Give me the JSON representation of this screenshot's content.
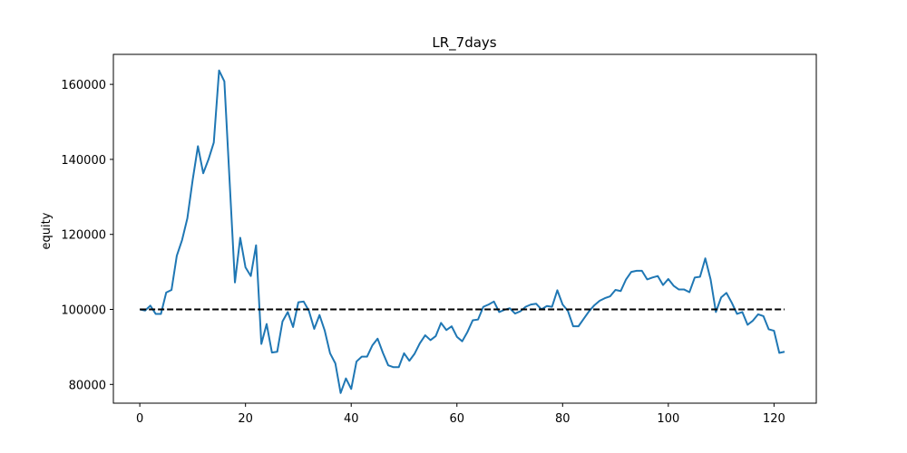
{
  "chart_data": {
    "type": "line",
    "title": "LR_7days",
    "xlabel": "",
    "ylabel": "equity",
    "xlim": [
      -5,
      128
    ],
    "ylim": [
      75000,
      168000
    ],
    "x_ticks": [
      0,
      20,
      40,
      60,
      80,
      100,
      120
    ],
    "y_ticks": [
      80000,
      100000,
      120000,
      140000,
      160000
    ],
    "grid": false,
    "series": [
      {
        "color": "#1f77b4",
        "style": "solid",
        "values": [
          100000,
          99700,
          101000,
          98800,
          98800,
          104500,
          105200,
          114300,
          118500,
          124300,
          134500,
          143500,
          136300,
          140000,
          144500,
          163700,
          160800,
          134000,
          107200,
          119100,
          111200,
          108900,
          117100,
          90800,
          96100,
          88500,
          88700,
          96800,
          99300,
          95300,
          101900,
          102100,
          99600,
          94800,
          98500,
          94300,
          88300,
          85600,
          77700,
          81600,
          78800,
          86100,
          87400,
          87400,
          90400,
          92200,
          88400,
          85100,
          84600,
          84600,
          88300,
          86300,
          88200,
          91000,
          93100,
          91800,
          92900,
          96400,
          94500,
          95500,
          92700,
          91500,
          94000,
          97100,
          97300,
          100700,
          101300,
          102100,
          99300,
          99900,
          100300,
          98900,
          99500,
          100700,
          101300,
          101500,
          100000,
          100900,
          100700,
          105100,
          101300,
          99600,
          95500,
          95500,
          97500,
          99500,
          101100,
          102300,
          103000,
          103500,
          105200,
          104900,
          108000,
          110000,
          110300,
          110300,
          108000,
          108500,
          108900,
          106500,
          108100,
          106300,
          105300,
          105300,
          104600,
          108500,
          108700,
          113600,
          108000,
          99300,
          103200,
          104400,
          101800,
          98800,
          99300,
          95900,
          97000,
          98700,
          98200,
          94700,
          94300,
          88400,
          88700
        ]
      },
      {
        "color": "#000000",
        "style": "dashed",
        "values": [
          100000,
          100000
        ],
        "x": [
          0,
          122
        ]
      }
    ]
  }
}
